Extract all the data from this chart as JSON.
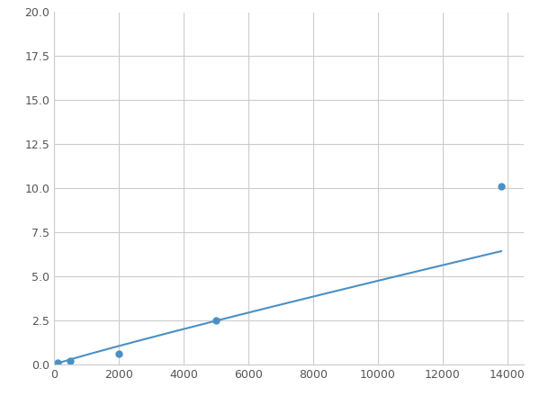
{
  "x_points": [
    100,
    500,
    2000,
    5000,
    13800
  ],
  "y_points": [
    0.1,
    0.2,
    0.6,
    2.5,
    10.1
  ],
  "line_color": "#4a90c4",
  "marker_color": "#4a90c4",
  "marker_size": 5,
  "xlim": [
    0,
    14500
  ],
  "ylim": [
    0,
    20.0
  ],
  "xticks": [
    0,
    2000,
    4000,
    6000,
    8000,
    10000,
    12000,
    14000
  ],
  "yticks": [
    0.0,
    2.5,
    5.0,
    7.5,
    10.0,
    12.5,
    15.0,
    17.5,
    20.0
  ],
  "grid_color": "#cccccc",
  "background_color": "#ffffff",
  "tick_label_color": "#555555",
  "tick_label_fontsize": 9,
  "linewidth": 1.5
}
